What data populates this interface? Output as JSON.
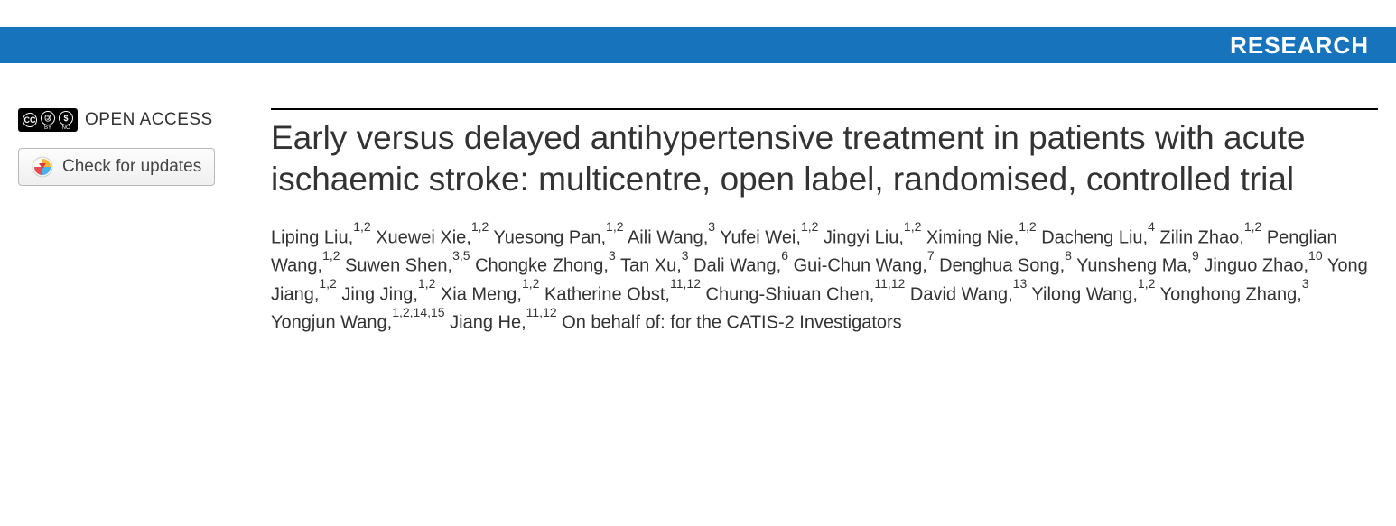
{
  "banner": {
    "label": "RESEARCH",
    "bg_color": "#1773bc",
    "text_color": "#ffffff"
  },
  "left": {
    "open_access_label": "OPEN ACCESS",
    "cc_parts": [
      "cc",
      "BY",
      "NC"
    ],
    "updates_label": "Check for updates"
  },
  "article": {
    "title": "Early versus delayed antihypertensive treatment in patients with acute ischaemic stroke: multicentre, open label, randomised, controlled trial",
    "authors": [
      {
        "name": "Liping Liu",
        "affil": "1,2"
      },
      {
        "name": "Xuewei Xie",
        "affil": "1,2"
      },
      {
        "name": "Yuesong Pan",
        "affil": "1,2"
      },
      {
        "name": "Aili Wang",
        "affil": "3"
      },
      {
        "name": "Yufei Wei",
        "affil": "1,2"
      },
      {
        "name": "Jingyi Liu",
        "affil": "1,2"
      },
      {
        "name": "Ximing Nie",
        "affil": "1,2"
      },
      {
        "name": "Dacheng Liu",
        "affil": "4"
      },
      {
        "name": "Zilin Zhao",
        "affil": "1,2"
      },
      {
        "name": "Penglian Wang",
        "affil": "1,2"
      },
      {
        "name": "Suwen Shen",
        "affil": "3,5"
      },
      {
        "name": "Chongke Zhong",
        "affil": "3"
      },
      {
        "name": "Tan Xu",
        "affil": "3"
      },
      {
        "name": "Dali Wang",
        "affil": "6"
      },
      {
        "name": "Gui-Chun Wang",
        "affil": "7"
      },
      {
        "name": "Denghua Song",
        "affil": "8"
      },
      {
        "name": "Yunsheng Ma",
        "affil": "9"
      },
      {
        "name": "Jinguo Zhao",
        "affil": "10"
      },
      {
        "name": "Yong Jiang",
        "affil": "1,2"
      },
      {
        "name": "Jing Jing",
        "affil": "1,2"
      },
      {
        "name": "Xia Meng",
        "affil": "1,2"
      },
      {
        "name": "Katherine Obst",
        "affil": "11,12"
      },
      {
        "name": "Chung-Shiuan Chen",
        "affil": "11,12"
      },
      {
        "name": "David Wang",
        "affil": "13"
      },
      {
        "name": "Yilong Wang",
        "affil": "1,2"
      },
      {
        "name": "Yonghong Zhang",
        "affil": "3"
      },
      {
        "name": "Yongjun Wang",
        "affil": "1,2,14,15"
      },
      {
        "name": "Jiang He",
        "affil": "11,12"
      }
    ],
    "trailing": "On behalf of: for the CATIS-2 Investigators"
  },
  "style": {
    "title_fontsize": 37,
    "author_fontsize": 20,
    "text_color": "#333333"
  }
}
